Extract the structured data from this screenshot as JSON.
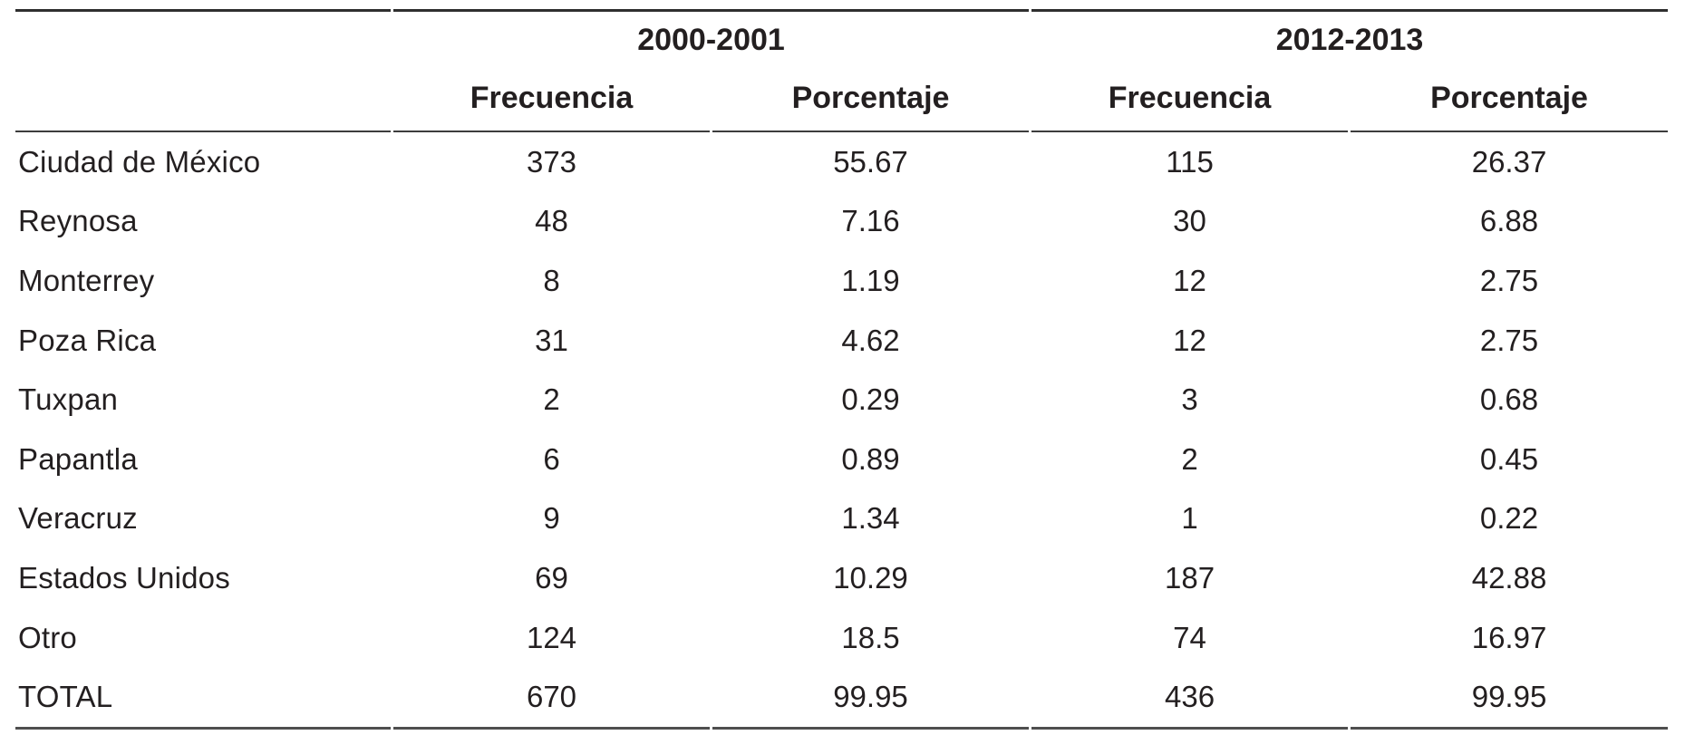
{
  "page": {
    "background": "#ffffff",
    "text_color": "#231f20",
    "rule_top_color": "#2f2f2f",
    "rule_mid_color": "#3d3d3d",
    "rule_bottom_color": "#4f4f4f"
  },
  "table": {
    "period_headers": [
      {
        "label": "2000-2001"
      },
      {
        "label": "2012-2013"
      }
    ],
    "column_headers": [
      "Frecuencia",
      "Porcentaje",
      "Frecuencia",
      "Porcentaje"
    ],
    "rows": [
      {
        "label": "Ciudad de México",
        "values": [
          "373",
          "55.67",
          "115",
          "26.37"
        ]
      },
      {
        "label": "Reynosa",
        "values": [
          "48",
          "7.16",
          "30",
          "6.88"
        ]
      },
      {
        "label": "Monterrey",
        "values": [
          "8",
          "1.19",
          "12",
          "2.75"
        ]
      },
      {
        "label": "Poza Rica",
        "values": [
          "31",
          "4.62",
          "12",
          "2.75"
        ]
      },
      {
        "label": "Tuxpan",
        "values": [
          "2",
          "0.29",
          "3",
          "0.68"
        ]
      },
      {
        "label": "Papantla",
        "values": [
          "6",
          "0.89",
          "2",
          "0.45"
        ]
      },
      {
        "label": "Veracruz",
        "values": [
          "9",
          "1.34",
          "1",
          "0.22"
        ]
      },
      {
        "label": "Estados Unidos",
        "values": [
          "69",
          "10.29",
          "187",
          "42.88"
        ]
      },
      {
        "label": "Otro",
        "values": [
          "124",
          "18.5",
          "74",
          "16.97"
        ]
      },
      {
        "label": "TOTAL",
        "values": [
          "670",
          "99.95",
          "436",
          "99.95"
        ]
      }
    ]
  },
  "chart_data": {
    "type": "table",
    "categories": [
      "Ciudad de México",
      "Reynosa",
      "Monterrey",
      "Poza Rica",
      "Tuxpan",
      "Papantla",
      "Veracruz",
      "Estados Unidos",
      "Otro",
      "TOTAL"
    ],
    "series": [
      {
        "name": "2000-2001 Frecuencia",
        "values": [
          373,
          48,
          8,
          31,
          2,
          6,
          9,
          69,
          124,
          670
        ]
      },
      {
        "name": "2000-2001 Porcentaje",
        "values": [
          55.67,
          7.16,
          1.19,
          4.62,
          0.29,
          0.89,
          1.34,
          10.29,
          18.5,
          99.95
        ]
      },
      {
        "name": "2012-2013 Frecuencia",
        "values": [
          115,
          30,
          12,
          12,
          3,
          2,
          1,
          187,
          74,
          436
        ]
      },
      {
        "name": "2012-2013 Porcentaje",
        "values": [
          26.37,
          6.88,
          2.75,
          2.75,
          0.68,
          0.45,
          0.22,
          42.88,
          16.97,
          99.95
        ]
      }
    ],
    "title": "",
    "notes": "Two-period frequency/percentage table"
  }
}
